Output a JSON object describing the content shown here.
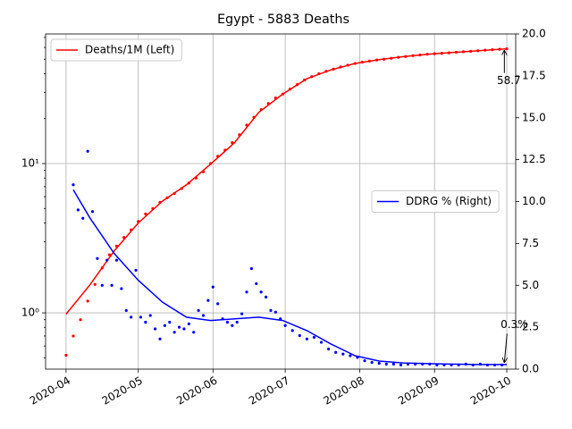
{
  "chart_data": {
    "type": "line",
    "title": "Egypt - 5883 Deaths",
    "xlim": [
      -8.5,
      186.7
    ],
    "xticks": [
      {
        "value": 0,
        "label": "2020-04"
      },
      {
        "value": 30,
        "label": "2020-05"
      },
      {
        "value": 61,
        "label": "2020-06"
      },
      {
        "value": 91,
        "label": "2020-07"
      },
      {
        "value": 122,
        "label": "2020-08"
      },
      {
        "value": 153,
        "label": "2020-09"
      },
      {
        "value": 183,
        "label": "2020-10"
      }
    ],
    "ylim": [
      0.42,
      73.8
    ],
    "ylog": true,
    "yticks": [
      {
        "value": 1,
        "label": "10⁰"
      },
      {
        "value": 10,
        "label": "10¹"
      }
    ],
    "yminor": [
      0.5,
      0.6,
      0.7,
      0.8,
      0.9,
      2,
      3,
      4,
      5,
      6,
      7,
      8,
      9,
      20,
      30,
      40,
      50,
      60,
      70
    ],
    "y2lim": [
      0,
      20
    ],
    "y2ticks": [
      {
        "value": 0,
        "label": "0.0"
      },
      2.5,
      {
        "value": 5,
        "label": "5.0"
      },
      7.5,
      {
        "value": 10,
        "label": "10.0"
      },
      12.5,
      {
        "value": 15,
        "label": "15.0"
      },
      17.5,
      {
        "value": 20,
        "label": "20.0"
      }
    ],
    "grid": true,
    "series": [
      {
        "name": "Deaths/1M (Left)",
        "color": "#ff0000",
        "axis": "y",
        "legend": "upper left",
        "line": {
          "x": [
            0,
            10,
            20,
            30,
            40,
            50,
            60,
            70,
            80,
            90,
            100,
            110,
            120,
            130,
            140,
            150,
            160,
            170,
            183
          ],
          "values": [
            0.98,
            1.55,
            2.6,
            4.0,
            5.6,
            7.2,
            9.9,
            13.8,
            22,
            29.2,
            37,
            42.4,
            46.8,
            49.6,
            52,
            54,
            55.4,
            56.8,
            58.7
          ]
        },
        "dots": {
          "x": [
            0,
            3,
            6,
            9,
            12,
            15,
            18,
            21,
            24,
            27,
            30,
            33,
            36,
            39,
            42,
            45,
            48,
            51,
            54,
            57,
            60,
            63,
            66,
            69,
            72,
            75,
            78,
            81,
            84,
            87,
            90,
            93,
            96,
            99,
            102,
            105,
            108,
            111,
            114,
            117,
            120,
            123,
            126,
            129,
            132,
            135,
            138,
            141,
            144,
            147,
            150,
            153,
            156,
            159,
            162,
            165,
            168,
            171,
            174,
            177,
            180,
            183
          ],
          "values": [
            0.52,
            0.7,
            0.9,
            1.2,
            1.55,
            2.0,
            2.45,
            2.8,
            3.2,
            3.6,
            4.1,
            4.6,
            5.0,
            5.5,
            5.9,
            6.3,
            6.8,
            7.4,
            8.0,
            8.8,
            10.0,
            11.2,
            12.3,
            13.8,
            15.6,
            18.1,
            20.4,
            23.0,
            25.3,
            27.5,
            29.2,
            31.5,
            33.8,
            36.3,
            38.2,
            40.0,
            41.5,
            42.9,
            44.4,
            45.6,
            46.8,
            47.8,
            48.6,
            49.4,
            50.0,
            50.7,
            51.5,
            52.1,
            52.8,
            53.4,
            54.0,
            54.4,
            54.8,
            55.2,
            55.7,
            56.1,
            56.5,
            57.0,
            57.5,
            57.9,
            58.3,
            58.7
          ]
        }
      },
      {
        "name": "DDRG % (Right)",
        "color": "#0000ff",
        "axis": "y2",
        "legend": "center right",
        "line": {
          "x": [
            3,
            10,
            20,
            30,
            40,
            50,
            60,
            70,
            80,
            90,
            100,
            110,
            120,
            130,
            140,
            153,
            170,
            183
          ],
          "values": [
            10.7,
            9.0,
            6.9,
            5.3,
            4.0,
            3.1,
            2.9,
            3.0,
            3.1,
            2.9,
            2.3,
            1.5,
            0.8,
            0.48,
            0.37,
            0.32,
            0.27,
            0.27
          ]
        },
        "dots": {
          "x": [
            3,
            5,
            7,
            9,
            11,
            13,
            15,
            17,
            19,
            21,
            23,
            25,
            27,
            29,
            31,
            33,
            35,
            37,
            39,
            41,
            43,
            45,
            47,
            49,
            51,
            53,
            55,
            57,
            59,
            61,
            63,
            65,
            67,
            69,
            71,
            73,
            75,
            77,
            79,
            81,
            83,
            85,
            87,
            89,
            91,
            94,
            97,
            100,
            103,
            106,
            109,
            112,
            115,
            118,
            121,
            124,
            127,
            130,
            133,
            136,
            139,
            142,
            145,
            148,
            151,
            154,
            157,
            160,
            163,
            166,
            169,
            172,
            175,
            178,
            181
          ],
          "values": [
            11.0,
            9.5,
            9.0,
            13.0,
            9.4,
            6.6,
            5.0,
            6.5,
            5.0,
            6.5,
            4.8,
            3.5,
            3.1,
            5.9,
            3.1,
            2.8,
            3.2,
            2.4,
            1.8,
            2.6,
            2.8,
            2.2,
            2.5,
            2.4,
            2.7,
            2.2,
            3.5,
            3.2,
            4.1,
            4.9,
            3.9,
            3.0,
            2.8,
            2.6,
            2.8,
            3.3,
            4.6,
            6.0,
            5.1,
            4.6,
            4.3,
            3.5,
            3.4,
            3.0,
            2.6,
            2.3,
            2.0,
            1.8,
            1.9,
            1.6,
            1.2,
            1.0,
            0.9,
            0.8,
            0.7,
            0.5,
            0.4,
            0.35,
            0.3,
            0.3,
            0.25,
            0.3,
            0.3,
            0.3,
            0.3,
            0.25,
            0.25,
            0.25,
            0.25,
            0.3,
            0.25,
            0.3,
            0.25,
            0.25,
            0.25
          ]
        }
      }
    ],
    "annotations": [
      {
        "text": "58.7",
        "x": 182,
        "y": 58.7,
        "axis": "y"
      },
      {
        "text": "0.3%",
        "x": 182,
        "y": 0.3,
        "axis": "y2"
      }
    ]
  }
}
